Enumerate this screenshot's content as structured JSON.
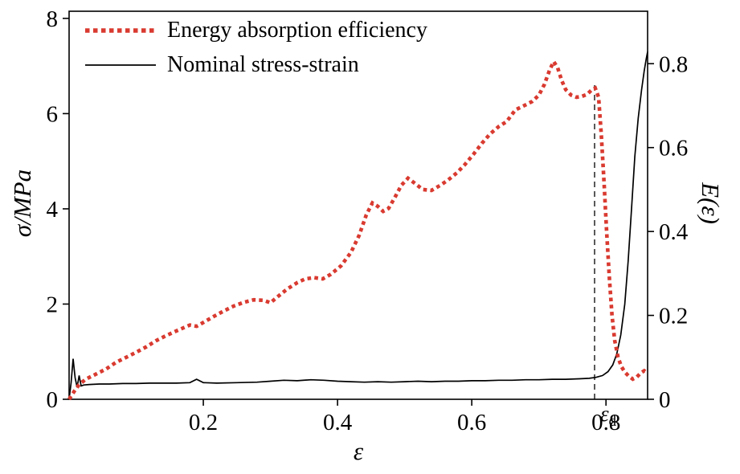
{
  "chart_data": {
    "type": "line",
    "title": "",
    "grid": false,
    "legend_position": "top-left-inside",
    "colors": {
      "energy": "#d93a30",
      "stress": "#000000",
      "frame": "#000000"
    },
    "x_axis": {
      "label": "ε",
      "range": [
        0,
        0.862
      ],
      "ticks": [
        {
          "v": 0.2,
          "label": "0.2"
        },
        {
          "v": 0.4,
          "label": "0.4"
        },
        {
          "v": 0.6,
          "label": "0.6"
        },
        {
          "v": 0.8,
          "label": "0.8"
        }
      ]
    },
    "y_left": {
      "symbol": "σ",
      "unit": "/MPa",
      "range": [
        0,
        8.15
      ],
      "ticks": [
        {
          "v": 0,
          "label": "0"
        },
        {
          "v": 2,
          "label": "2"
        },
        {
          "v": 4,
          "label": "4"
        },
        {
          "v": 6,
          "label": "6"
        },
        {
          "v": 8,
          "label": "8"
        }
      ]
    },
    "y_right": {
      "label": "E(ε)",
      "range": [
        0,
        0.925
      ],
      "ticks": [
        {
          "v": 0,
          "label": "0"
        },
        {
          "v": 0.2,
          "label": "0.2"
        },
        {
          "v": 0.4,
          "label": "0.4"
        },
        {
          "v": 0.6,
          "label": "0.6"
        },
        {
          "v": 0.8,
          "label": "0.8"
        }
      ]
    },
    "legend": [
      {
        "label": "Energy absorption efficiency",
        "color": "#d93a30",
        "style": "dotted"
      },
      {
        "label": "Nominal stress-strain",
        "color": "#000000",
        "style": "solid"
      }
    ],
    "annotation": {
      "symbol": "ε",
      "subscript": "d",
      "x": 0.783,
      "top_right_units": 0.75
    },
    "series": [
      {
        "name": "Nominal stress-strain",
        "axis": "left",
        "color": "#000000",
        "style": "solid",
        "points": [
          [
            0,
            0
          ],
          [
            0.003,
            0.35
          ],
          [
            0.006,
            0.85
          ],
          [
            0.009,
            0.45
          ],
          [
            0.012,
            0.25
          ],
          [
            0.015,
            0.5
          ],
          [
            0.018,
            0.28
          ],
          [
            0.022,
            0.3
          ],
          [
            0.03,
            0.31
          ],
          [
            0.045,
            0.32
          ],
          [
            0.06,
            0.32
          ],
          [
            0.08,
            0.33
          ],
          [
            0.1,
            0.33
          ],
          [
            0.12,
            0.34
          ],
          [
            0.14,
            0.34
          ],
          [
            0.16,
            0.34
          ],
          [
            0.18,
            0.35
          ],
          [
            0.19,
            0.42
          ],
          [
            0.2,
            0.35
          ],
          [
            0.22,
            0.34
          ],
          [
            0.25,
            0.35
          ],
          [
            0.28,
            0.36
          ],
          [
            0.3,
            0.38
          ],
          [
            0.32,
            0.4
          ],
          [
            0.34,
            0.39
          ],
          [
            0.36,
            0.41
          ],
          [
            0.38,
            0.4
          ],
          [
            0.4,
            0.38
          ],
          [
            0.42,
            0.37
          ],
          [
            0.44,
            0.36
          ],
          [
            0.46,
            0.37
          ],
          [
            0.48,
            0.36
          ],
          [
            0.5,
            0.37
          ],
          [
            0.52,
            0.38
          ],
          [
            0.54,
            0.37
          ],
          [
            0.56,
            0.38
          ],
          [
            0.58,
            0.38
          ],
          [
            0.6,
            0.39
          ],
          [
            0.62,
            0.39
          ],
          [
            0.64,
            0.4
          ],
          [
            0.66,
            0.4
          ],
          [
            0.68,
            0.41
          ],
          [
            0.7,
            0.41
          ],
          [
            0.72,
            0.42
          ],
          [
            0.74,
            0.42
          ],
          [
            0.76,
            0.43
          ],
          [
            0.775,
            0.44
          ],
          [
            0.785,
            0.46
          ],
          [
            0.795,
            0.5
          ],
          [
            0.803,
            0.58
          ],
          [
            0.81,
            0.72
          ],
          [
            0.816,
            0.95
          ],
          [
            0.822,
            1.35
          ],
          [
            0.828,
            2.0
          ],
          [
            0.833,
            2.9
          ],
          [
            0.838,
            4.0
          ],
          [
            0.843,
            5.1
          ],
          [
            0.848,
            5.9
          ],
          [
            0.853,
            6.5
          ],
          [
            0.857,
            6.9
          ],
          [
            0.86,
            7.15
          ],
          [
            0.862,
            7.3
          ]
        ]
      },
      {
        "name": "Energy absorption efficiency",
        "axis": "right",
        "color": "#d93a30",
        "style": "dotted",
        "points": [
          [
            0,
            0
          ],
          [
            0.004,
            0.01
          ],
          [
            0.008,
            0.02
          ],
          [
            0.015,
            0.035
          ],
          [
            0.025,
            0.048
          ],
          [
            0.04,
            0.06
          ],
          [
            0.055,
            0.072
          ],
          [
            0.07,
            0.088
          ],
          [
            0.085,
            0.1
          ],
          [
            0.1,
            0.112
          ],
          [
            0.115,
            0.125
          ],
          [
            0.13,
            0.14
          ],
          [
            0.145,
            0.152
          ],
          [
            0.16,
            0.163
          ],
          [
            0.17,
            0.17
          ],
          [
            0.18,
            0.177
          ],
          [
            0.19,
            0.174
          ],
          [
            0.2,
            0.183
          ],
          [
            0.215,
            0.197
          ],
          [
            0.23,
            0.21
          ],
          [
            0.245,
            0.222
          ],
          [
            0.26,
            0.231
          ],
          [
            0.275,
            0.237
          ],
          [
            0.29,
            0.236
          ],
          [
            0.3,
            0.23
          ],
          [
            0.312,
            0.246
          ],
          [
            0.325,
            0.263
          ],
          [
            0.34,
            0.278
          ],
          [
            0.352,
            0.287
          ],
          [
            0.365,
            0.29
          ],
          [
            0.378,
            0.287
          ],
          [
            0.39,
            0.298
          ],
          [
            0.405,
            0.318
          ],
          [
            0.42,
            0.35
          ],
          [
            0.432,
            0.39
          ],
          [
            0.443,
            0.44
          ],
          [
            0.452,
            0.468
          ],
          [
            0.46,
            0.46
          ],
          [
            0.468,
            0.448
          ],
          [
            0.476,
            0.455
          ],
          [
            0.485,
            0.48
          ],
          [
            0.495,
            0.51
          ],
          [
            0.505,
            0.527
          ],
          [
            0.515,
            0.515
          ],
          [
            0.527,
            0.5
          ],
          [
            0.54,
            0.498
          ],
          [
            0.553,
            0.51
          ],
          [
            0.565,
            0.523
          ],
          [
            0.578,
            0.54
          ],
          [
            0.59,
            0.56
          ],
          [
            0.603,
            0.585
          ],
          [
            0.615,
            0.61
          ],
          [
            0.627,
            0.632
          ],
          [
            0.64,
            0.65
          ],
          [
            0.652,
            0.662
          ],
          [
            0.665,
            0.69
          ],
          [
            0.678,
            0.7
          ],
          [
            0.69,
            0.71
          ],
          [
            0.7,
            0.725
          ],
          [
            0.708,
            0.75
          ],
          [
            0.716,
            0.785
          ],
          [
            0.722,
            0.805
          ],
          [
            0.728,
            0.79
          ],
          [
            0.734,
            0.76
          ],
          [
            0.74,
            0.738
          ],
          [
            0.748,
            0.725
          ],
          [
            0.756,
            0.72
          ],
          [
            0.764,
            0.722
          ],
          [
            0.772,
            0.727
          ],
          [
            0.779,
            0.738
          ],
          [
            0.784,
            0.742
          ],
          [
            0.789,
            0.72
          ],
          [
            0.793,
            0.63
          ],
          [
            0.797,
            0.52
          ],
          [
            0.801,
            0.4
          ],
          [
            0.805,
            0.29
          ],
          [
            0.809,
            0.2
          ],
          [
            0.813,
            0.14
          ],
          [
            0.818,
            0.1
          ],
          [
            0.823,
            0.078
          ],
          [
            0.828,
            0.065
          ],
          [
            0.834,
            0.055
          ],
          [
            0.84,
            0.048
          ],
          [
            0.846,
            0.053
          ],
          [
            0.852,
            0.063
          ],
          [
            0.857,
            0.068
          ],
          [
            0.862,
            0.062
          ]
        ]
      }
    ]
  }
}
